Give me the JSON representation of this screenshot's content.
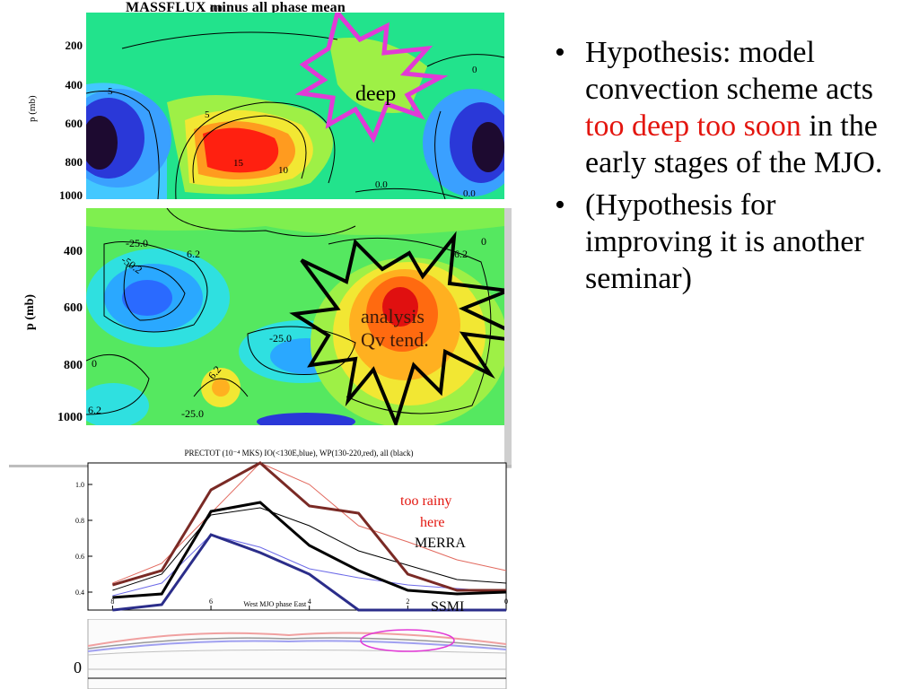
{
  "panel1": {
    "title": "MASSFLUX minus all phase mean",
    "ylabel": "p (mb)",
    "yticks": [
      "200",
      "400",
      "600",
      "800",
      "1000"
    ],
    "contour_labels": [
      "0.0",
      "5",
      "5",
      "15",
      "10",
      "0.0",
      "0.0",
      "0"
    ],
    "callout": "deep"
  },
  "panel2": {
    "ylabel": "p (mb)",
    "yticks": [
      "400",
      "600",
      "800",
      "1000"
    ],
    "contour_labels": [
      "-25.0",
      "-50.2",
      "6.2",
      "-25.0",
      "6.2",
      "0",
      "6.2",
      "-25.0",
      "0",
      "6.2"
    ],
    "callout_line1": "analysis",
    "callout_line2": "Qv tend."
  },
  "chart_data": {
    "type": "line",
    "title": "PRECTOT (10⁻⁴ MKS) IO(<130E,blue), WP(130-220,red), all (black)",
    "xlabel": "West  MJO phase  East",
    "x": [
      8,
      7,
      6,
      5,
      4,
      3,
      2,
      1,
      0
    ],
    "xticks": [
      "8",
      "6",
      "4",
      "2",
      "0"
    ],
    "yticks": [
      "1.0",
      "0.8",
      "0.6",
      "0.4"
    ],
    "ylim": [
      0.3,
      1.12
    ],
    "xlim": [
      8.5,
      0
    ],
    "series": [
      {
        "name": "WP",
        "color": "#e26a5f",
        "width": 1,
        "values": [
          0.45,
          0.56,
          0.84,
          1.12,
          1.0,
          0.77,
          0.68,
          0.58,
          0.52
        ]
      },
      {
        "name": "IO",
        "color": "#6c6ae8",
        "width": 1,
        "values": [
          0.38,
          0.45,
          0.72,
          0.65,
          0.53,
          0.48,
          0.44,
          0.42,
          0.4
        ]
      },
      {
        "name": "all",
        "color": "#000000",
        "width": 1,
        "values": [
          0.41,
          0.5,
          0.83,
          0.87,
          0.77,
          0.63,
          0.55,
          0.47,
          0.45
        ]
      },
      {
        "name": "MERRA-WP",
        "color": "#7a2a25",
        "width": 3,
        "values": [
          0.44,
          0.52,
          0.97,
          1.18,
          0.88,
          0.84,
          0.5,
          0.41,
          0.41
        ]
      },
      {
        "name": "MERRA-all",
        "color": "#000000",
        "width": 3,
        "values": [
          0.37,
          0.39,
          0.85,
          0.9,
          0.66,
          0.52,
          0.41,
          0.39,
          0.4
        ]
      },
      {
        "name": "SSMI-IO",
        "color": "#2b2d8a",
        "width": 3,
        "values": [
          0.28,
          0.33,
          0.72,
          0.62,
          0.5,
          0.3,
          0.27,
          0.27,
          0.3
        ]
      }
    ],
    "annotations": [
      "too rainy",
      "here",
      "MERRA",
      "SSMI"
    ]
  },
  "bullets": {
    "b1_part1": "Hypothesis: model convection scheme acts ",
    "b1_red": "too deep too soon",
    "b1_part2": " in the early stages of the MJO.",
    "b2": "(Hypothesis for improving it is another seminar)"
  },
  "bottom_fragment": "0"
}
